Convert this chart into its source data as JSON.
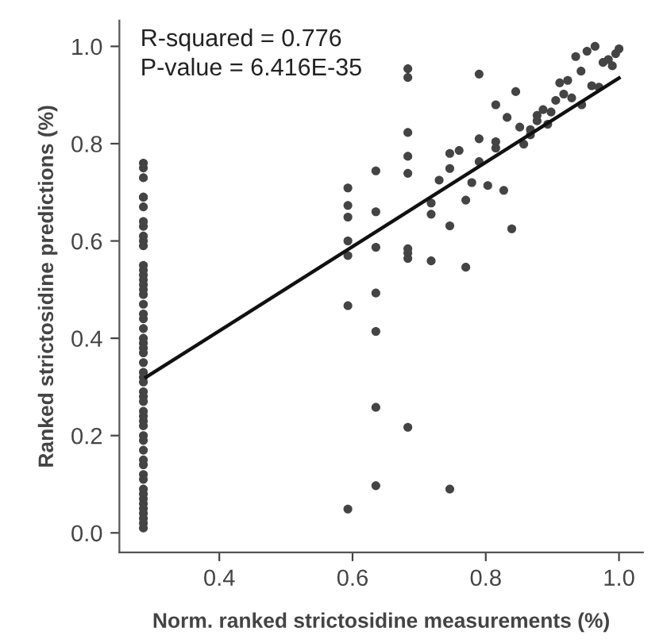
{
  "chart_data": {
    "type": "scatter",
    "xlabel": "Norm. ranked strictosidine measurements (%)",
    "ylabel": "Ranked strictosidine predictions (%)",
    "annotations": [
      "R-squared = 0.776",
      "P-value = 6.416E-35"
    ],
    "xlim": [
      0.25,
      1.036
    ],
    "ylim": [
      -0.04,
      1.053
    ],
    "xticks": [
      0.4,
      0.6,
      0.8,
      {
        "value": 1.0,
        "label": "1.0"
      }
    ],
    "yticks": [
      {
        "value": 0.0,
        "label": "0.0"
      },
      0.2,
      0.4,
      0.6,
      0.8,
      {
        "value": 1.0,
        "label": "1.0"
      }
    ],
    "grid": false,
    "marker": "circle",
    "series": [
      {
        "color": "#444444",
        "x": [
          0.286,
          0.286,
          0.286,
          0.286,
          0.286,
          0.286,
          0.286,
          0.286,
          0.286,
          0.286,
          0.286,
          0.286,
          0.286,
          0.286,
          0.286,
          0.286,
          0.286,
          0.286,
          0.286,
          0.286,
          0.286,
          0.286,
          0.286,
          0.286,
          0.286,
          0.286,
          0.286,
          0.286,
          0.286,
          0.286,
          0.286,
          0.286,
          0.286,
          0.286,
          0.286,
          0.286,
          0.286,
          0.286,
          0.286,
          0.286,
          0.286,
          0.286,
          0.286,
          0.286,
          0.286,
          0.286,
          0.286,
          0.286,
          0.286,
          0.286,
          0.286,
          0.286,
          0.286,
          0.593,
          0.593,
          0.593,
          0.593,
          0.593,
          0.593,
          0.593,
          0.635,
          0.635,
          0.635,
          0.635,
          0.635,
          0.635,
          0.635,
          0.683,
          0.683,
          0.683,
          0.683,
          0.683,
          0.683,
          0.683,
          0.683,
          0.683,
          0.718,
          0.718,
          0.718,
          0.73,
          0.746,
          0.746,
          0.746,
          0.746,
          0.76,
          0.77,
          0.77,
          0.779,
          0.79,
          0.79,
          0.79,
          0.803,
          0.815,
          0.815,
          0.815,
          0.827,
          0.832,
          0.839,
          0.845,
          0.851,
          0.857,
          0.867,
          0.867,
          0.877,
          0.877,
          0.886,
          0.893,
          0.898,
          0.905,
          0.911,
          0.917,
          0.923,
          0.929,
          0.935,
          0.943,
          0.944,
          0.952,
          0.959,
          0.964,
          0.97,
          0.976,
          0.984,
          0.99,
          0.995,
          1.0
        ],
        "values": [
          0.76,
          0.75,
          0.73,
          0.69,
          0.69,
          0.67,
          0.64,
          0.63,
          0.61,
          0.6,
          0.59,
          0.55,
          0.54,
          0.53,
          0.52,
          0.51,
          0.5,
          0.49,
          0.47,
          0.45,
          0.44,
          0.42,
          0.4,
          0.39,
          0.38,
          0.37,
          0.35,
          0.33,
          0.32,
          0.31,
          0.29,
          0.28,
          0.27,
          0.25,
          0.24,
          0.23,
          0.22,
          0.2,
          0.19,
          0.17,
          0.15,
          0.14,
          0.12,
          0.11,
          0.09,
          0.08,
          0.07,
          0.06,
          0.05,
          0.04,
          0.03,
          0.02,
          0.01,
          0.709,
          0.673,
          0.649,
          0.6,
          0.57,
          0.467,
          0.049,
          0.744,
          0.66,
          0.587,
          0.493,
          0.414,
          0.258,
          0.097,
          0.954,
          0.936,
          0.823,
          0.774,
          0.739,
          0.584,
          0.575,
          0.564,
          0.217,
          0.678,
          0.655,
          0.559,
          0.725,
          0.78,
          0.749,
          0.631,
          0.09,
          0.786,
          0.684,
          0.546,
          0.72,
          0.943,
          0.81,
          0.763,
          0.714,
          0.88,
          0.804,
          0.791,
          0.704,
          0.854,
          0.625,
          0.907,
          0.834,
          0.799,
          0.829,
          0.818,
          0.858,
          0.847,
          0.87,
          0.84,
          0.865,
          0.889,
          0.925,
          0.902,
          0.93,
          0.894,
          0.979,
          0.949,
          0.88,
          0.99,
          0.919,
          1.0,
          0.916,
          0.967,
          0.973,
          0.96,
          0.985,
          0.995
        ]
      },
      {
        "type": "line",
        "color": "#111111",
        "x": [
          0.29,
          1.0
        ],
        "values": [
          0.32,
          0.935
        ],
        "marker": "none",
        "line_style": "solid"
      }
    ]
  }
}
